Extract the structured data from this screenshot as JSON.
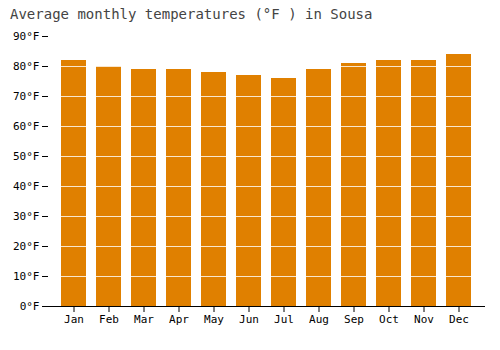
{
  "chart_data": {
    "type": "bar",
    "title": "Average monthly temperatures (°F ) in Sousa",
    "categories": [
      "Jan",
      "Feb",
      "Mar",
      "Apr",
      "May",
      "Jun",
      "Jul",
      "Aug",
      "Sep",
      "Oct",
      "Nov",
      "Dec"
    ],
    "values": [
      82,
      80,
      79,
      79,
      78,
      77,
      76,
      79,
      81,
      82,
      82,
      84
    ],
    "color": "#E08000",
    "ylim": [
      0,
      90
    ],
    "yticks": [
      {
        "value": 0,
        "label": "0°F"
      },
      {
        "value": 10,
        "label": "10°F"
      },
      {
        "value": 20,
        "label": "20°F"
      },
      {
        "value": 30,
        "label": "30°F"
      },
      {
        "value": 40,
        "label": "40°F"
      },
      {
        "value": 50,
        "label": "50°F"
      },
      {
        "value": 60,
        "label": "60°F"
      },
      {
        "value": 70,
        "label": "70°F"
      },
      {
        "value": 80,
        "label": "80°F"
      },
      {
        "value": 90,
        "label": "90°F"
      }
    ],
    "grid": true
  }
}
